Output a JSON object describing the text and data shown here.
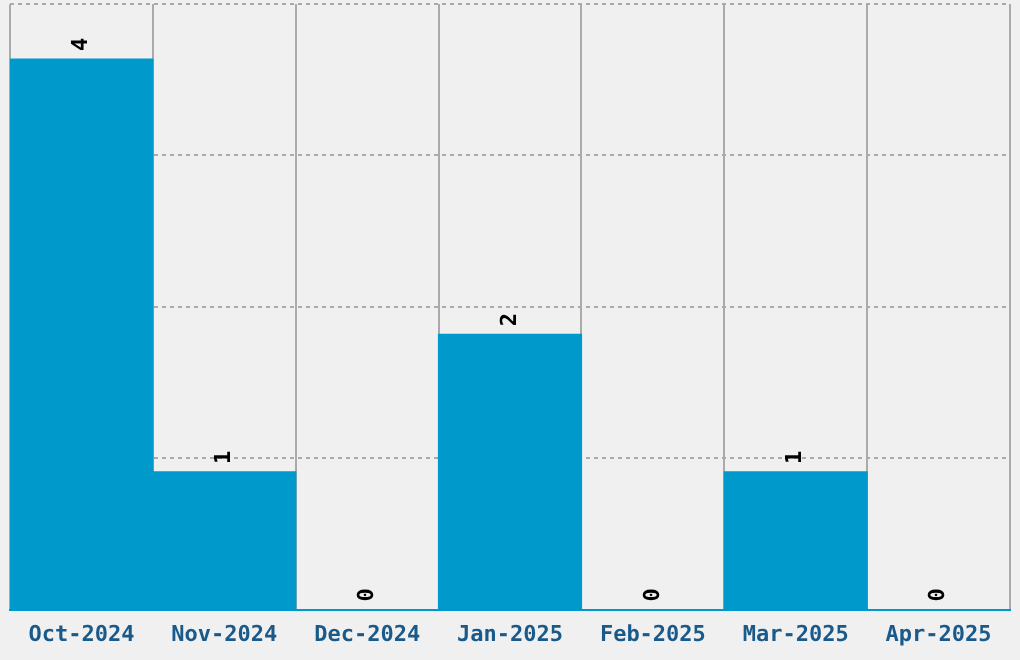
{
  "chart_data": {
    "type": "bar",
    "categories": [
      "Oct-2024",
      "Nov-2024",
      "Dec-2024",
      "Jan-2025",
      "Feb-2025",
      "Mar-2025",
      "Apr-2025"
    ],
    "values": [
      4,
      1,
      0,
      2,
      0,
      1,
      0
    ],
    "color": "#0099cc",
    "ylim": [
      0,
      4.4
    ],
    "yticks": [
      {
        "value": 0,
        "label": null
      },
      {
        "value": 1.1,
        "label": null
      },
      {
        "value": 2.2,
        "label": null
      },
      {
        "value": 3.3,
        "label": null
      },
      {
        "value": 4.4,
        "label": null
      }
    ],
    "tick_labels": "x",
    "grid": true,
    "data_labels": true
  }
}
